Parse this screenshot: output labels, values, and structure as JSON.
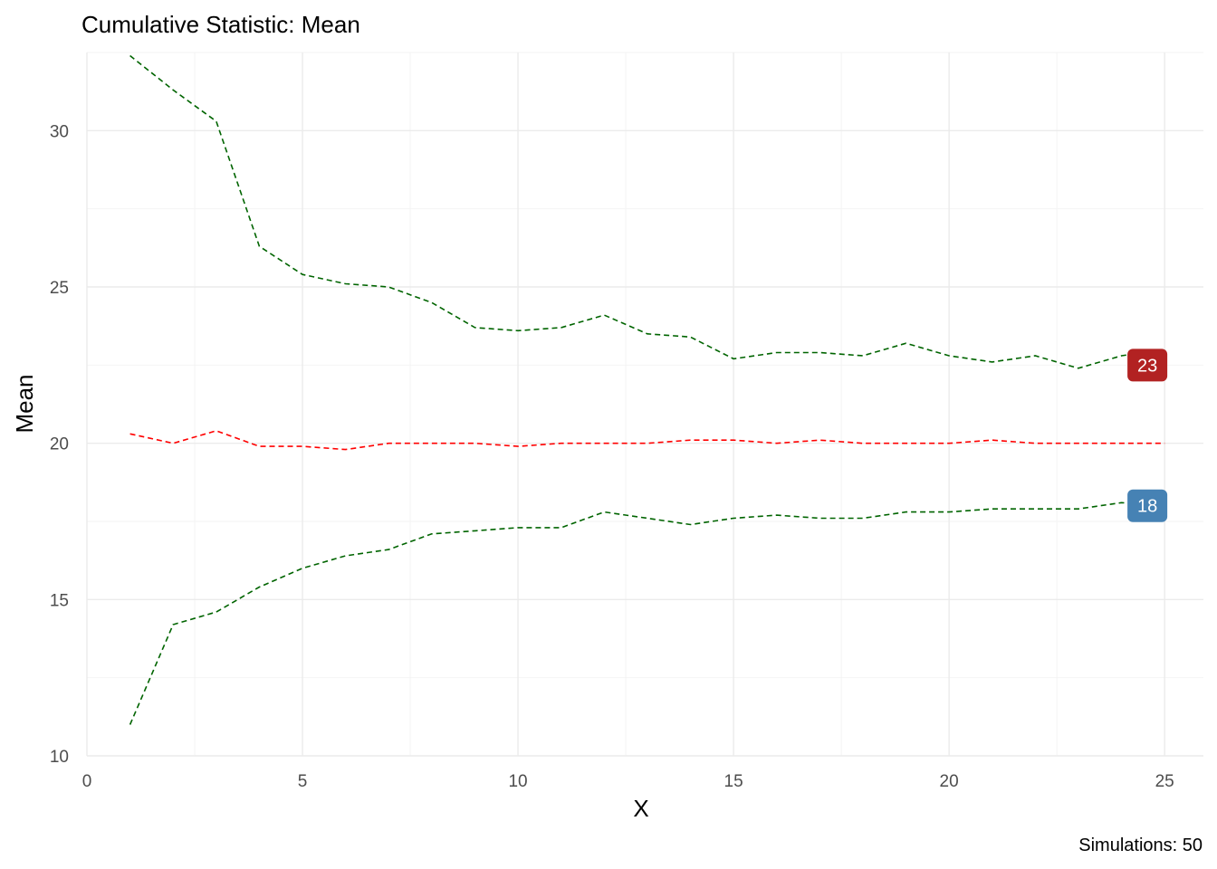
{
  "chart_data": {
    "type": "line",
    "title": "Cumulative Statistic: Mean",
    "xlabel": "X",
    "ylabel": "Mean",
    "caption": "Simulations: 50",
    "xlim": [
      0,
      25.9
    ],
    "ylim": [
      10,
      32.5
    ],
    "x_ticks": [
      0,
      5,
      10,
      15,
      20,
      25
    ],
    "y_ticks": [
      10,
      15,
      20,
      25,
      30
    ],
    "grid": true,
    "x": [
      1,
      2,
      3,
      4,
      5,
      6,
      7,
      8,
      9,
      10,
      11,
      12,
      13,
      14,
      15,
      16,
      17,
      18,
      19,
      20,
      21,
      22,
      23,
      24,
      25
    ],
    "series": [
      {
        "role": "upper",
        "color": "#006400",
        "values": [
          32.4,
          31.3,
          30.3,
          26.3,
          25.4,
          25.1,
          25.0,
          24.5,
          23.7,
          23.6,
          23.7,
          24.1,
          23.5,
          23.4,
          22.7,
          22.9,
          22.9,
          22.8,
          23.2,
          22.8,
          22.6,
          22.8,
          22.4,
          22.8,
          23.0
        ]
      },
      {
        "role": "mean",
        "color": "#ff0000",
        "values": [
          20.3,
          20.0,
          20.4,
          19.9,
          19.9,
          19.8,
          20.0,
          20.0,
          20.0,
          19.9,
          20.0,
          20.0,
          20.0,
          20.1,
          20.1,
          20.0,
          20.1,
          20.0,
          20.0,
          20.0,
          20.1,
          20.0,
          20.0,
          20.0,
          20.0
        ]
      },
      {
        "role": "lower",
        "color": "#006400",
        "values": [
          11.0,
          14.2,
          14.6,
          15.4,
          16.0,
          16.4,
          16.6,
          17.1,
          17.2,
          17.3,
          17.3,
          17.8,
          17.6,
          17.4,
          17.6,
          17.7,
          17.6,
          17.6,
          17.8,
          17.8,
          17.9,
          17.9,
          17.9,
          18.1,
          18.0
        ]
      }
    ],
    "end_labels": [
      {
        "text": "23",
        "x": 24.6,
        "y": 22.5,
        "color": "#b22222"
      },
      {
        "text": "18",
        "x": 24.6,
        "y": 18.0,
        "color": "#4682b4"
      }
    ]
  }
}
